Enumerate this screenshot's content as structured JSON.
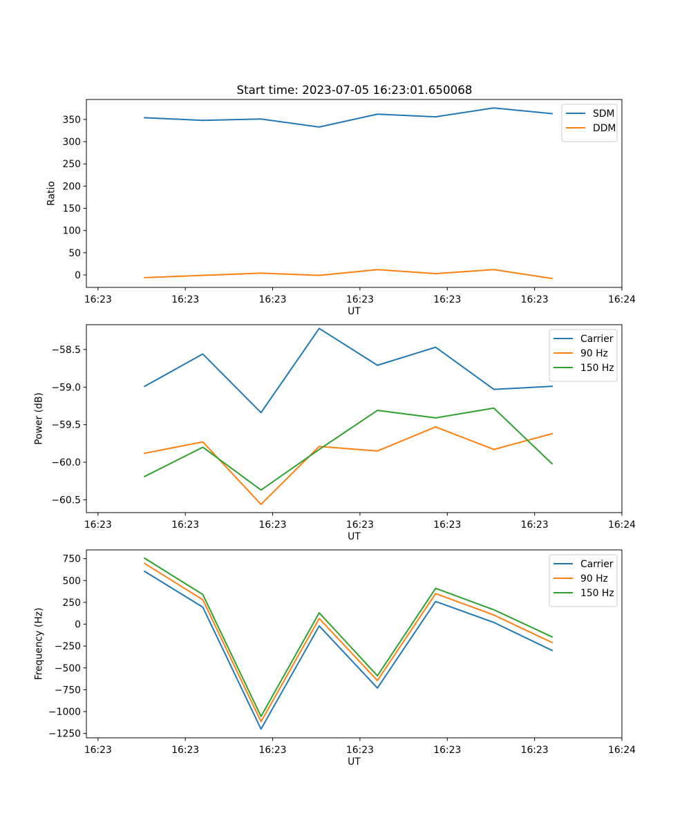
{
  "title": "Start time: 2023-07-05 16:23:01.650068",
  "chart_data": [
    {
      "type": "line",
      "xlabel": "UT",
      "ylabel": "Ratio",
      "x": [
        0.5,
        1.0,
        1.5,
        2.0,
        2.5,
        3.0,
        3.5,
        4.0
      ],
      "xlim": [
        0,
        4.6
      ],
      "xticks": [
        0.1,
        0.85,
        1.6,
        2.35,
        3.1,
        3.85,
        4.6
      ],
      "xtick_labels": [
        "16:23",
        "16:23",
        "16:23",
        "16:23",
        "16:23",
        "16:23",
        "16:24"
      ],
      "ylim": [
        -28,
        395
      ],
      "yticks": [
        0,
        50,
        100,
        150,
        200,
        250,
        300,
        350
      ],
      "ytick_labels": [
        "0",
        "50",
        "100",
        "150",
        "200",
        "250",
        "300",
        "350"
      ],
      "legend": "top-right",
      "series": [
        {
          "name": "SDM",
          "color": "#1f77b4",
          "values": [
            354,
            348,
            351,
            333,
            362,
            356,
            376,
            363
          ]
        },
        {
          "name": "DDM",
          "color": "#ff7f0e",
          "values": [
            -6,
            -1,
            4,
            -1,
            12,
            3,
            12,
            -8
          ]
        }
      ]
    },
    {
      "type": "line",
      "xlabel": "UT",
      "ylabel": "Power (dB)",
      "x": [
        0.5,
        1.0,
        1.5,
        2.0,
        2.5,
        3.0,
        3.5,
        4.0
      ],
      "xlim": [
        0,
        4.6
      ],
      "xticks": [
        0.1,
        0.85,
        1.6,
        2.35,
        3.1,
        3.85,
        4.6
      ],
      "xtick_labels": [
        "16:23",
        "16:23",
        "16:23",
        "16:23",
        "16:23",
        "16:23",
        "16:24"
      ],
      "ylim": [
        -60.67,
        -58.17
      ],
      "yticks": [
        -60.5,
        -60.0,
        -59.5,
        -59.0,
        -58.5
      ],
      "ytick_labels": [
        "−60.5",
        "−60.0",
        "−59.5",
        "−59.0",
        "−58.5"
      ],
      "legend": "top-right",
      "series": [
        {
          "name": "Carrier",
          "color": "#1f77b4",
          "values": [
            -58.99,
            -58.56,
            -59.34,
            -58.22,
            -58.71,
            -58.47,
            -59.03,
            -58.99
          ]
        },
        {
          "name": "90 Hz",
          "color": "#ff7f0e",
          "values": [
            -59.88,
            -59.73,
            -60.56,
            -59.79,
            -59.85,
            -59.53,
            -59.83,
            -59.62
          ]
        },
        {
          "name": "150 Hz",
          "color": "#2ca02c",
          "values": [
            -60.19,
            -59.8,
            -60.37,
            -59.83,
            -59.31,
            -59.41,
            -59.28,
            -60.02
          ]
        }
      ]
    },
    {
      "type": "line",
      "xlabel": "UT",
      "ylabel": "Frequency (Hz)",
      "x": [
        0.5,
        1.0,
        1.5,
        2.0,
        2.5,
        3.0,
        3.5,
        4.0
      ],
      "xlim": [
        0,
        4.6
      ],
      "xticks": [
        0.1,
        0.85,
        1.6,
        2.35,
        3.1,
        3.85,
        4.6
      ],
      "xtick_labels": [
        "16:23",
        "16:23",
        "16:23",
        "16:23",
        "16:23",
        "16:23",
        "16:24"
      ],
      "ylim": [
        -1300,
        850
      ],
      "yticks": [
        -1250,
        -1000,
        -750,
        -500,
        -250,
        0,
        250,
        500,
        750
      ],
      "ytick_labels": [
        "−1250",
        "−1000",
        "−750",
        "−500",
        "−250",
        "0",
        "250",
        "500",
        "750"
      ],
      "legend": "top-right",
      "series": [
        {
          "name": "Carrier",
          "color": "#1f77b4",
          "values": [
            605,
            195,
            -1200,
            -20,
            -730,
            260,
            20,
            -300
          ]
        },
        {
          "name": "90 Hz",
          "color": "#ff7f0e",
          "values": [
            695,
            280,
            -1115,
            65,
            -645,
            350,
            105,
            -210
          ]
        },
        {
          "name": "150 Hz",
          "color": "#2ca02c",
          "values": [
            755,
            340,
            -1055,
            130,
            -590,
            410,
            165,
            -145
          ]
        }
      ]
    }
  ]
}
